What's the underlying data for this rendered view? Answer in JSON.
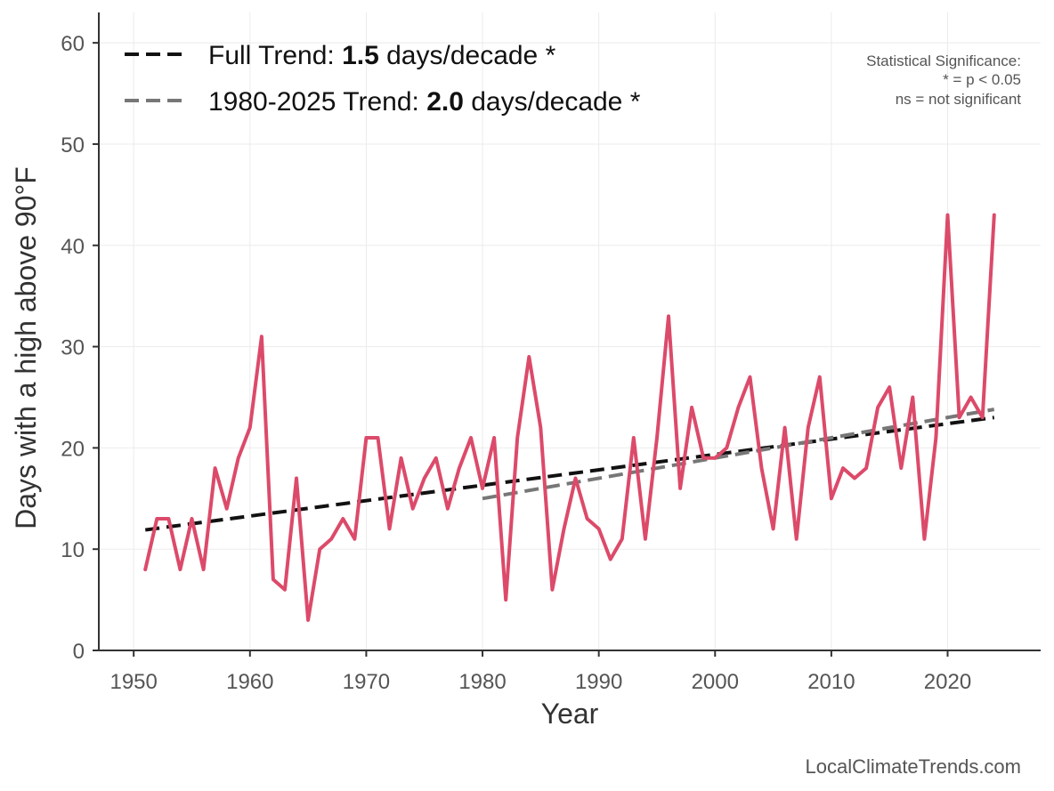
{
  "chart_data": {
    "type": "line",
    "xlabel": "Year",
    "ylabel": "Days with a high above 90°F",
    "xlim": [
      1947,
      2028
    ],
    "ylim": [
      0,
      63
    ],
    "x_ticks": [
      1950,
      1960,
      1970,
      1980,
      1990,
      2000,
      2010,
      2020
    ],
    "y_ticks": [
      0,
      10,
      20,
      30,
      40,
      50,
      60
    ],
    "grid": true,
    "legend_position": "top-left",
    "colors": {
      "series": "#dc4a6a",
      "full_trend": "#111111",
      "recent_trend": "#777777"
    },
    "series": [
      {
        "x": [
          1951,
          1952,
          1953,
          1954,
          1955,
          1956,
          1957,
          1958,
          1959,
          1960,
          1961,
          1962,
          1963,
          1964,
          1965,
          1966,
          1967,
          1968,
          1969,
          1970,
          1971,
          1972,
          1973,
          1974,
          1975,
          1976,
          1977,
          1978,
          1979,
          1980,
          1981,
          1982,
          1983,
          1984,
          1985,
          1986,
          1987,
          1988,
          1989,
          1990,
          1991,
          1992,
          1993,
          1994,
          1995,
          1996,
          1997,
          1998,
          1999,
          2000,
          2001,
          2002,
          2003,
          2004,
          2005,
          2006,
          2007,
          2008,
          2009,
          2010,
          2011,
          2012,
          2013,
          2014,
          2015,
          2016,
          2017,
          2018,
          2019,
          2020,
          2021,
          2022,
          2023,
          2024
        ],
        "values": [
          8,
          13,
          13,
          8,
          13,
          8,
          18,
          14,
          19,
          22,
          31,
          7,
          6,
          17,
          3,
          10,
          11,
          13,
          11,
          21,
          21,
          12,
          19,
          14,
          17,
          19,
          14,
          18,
          21,
          16,
          21,
          5,
          21,
          29,
          22,
          6,
          12,
          17,
          13,
          12,
          9,
          11,
          21,
          11,
          21,
          33,
          16,
          24,
          19,
          19,
          20,
          24,
          27,
          18,
          12,
          22,
          11,
          22,
          27,
          15,
          18,
          17,
          18,
          24,
          26,
          18,
          25,
          11,
          21,
          43,
          23,
          25,
          23,
          43
        ]
      }
    ],
    "trends": [
      {
        "label": "Full Trend: ",
        "value": "1.5",
        "suffix": " days/decade *",
        "x": [
          1951,
          2024
        ],
        "y": [
          11.9,
          23.0
        ]
      },
      {
        "label": "1980-2025 Trend: ",
        "value": "2.0",
        "suffix": " days/decade *",
        "x": [
          1980,
          2024
        ],
        "y": [
          15.0,
          23.8
        ]
      }
    ],
    "significance_note": [
      "Statistical Significance:",
      "* = p < 0.05",
      "ns = not significant"
    ]
  },
  "credit": "LocalClimateTrends.com"
}
